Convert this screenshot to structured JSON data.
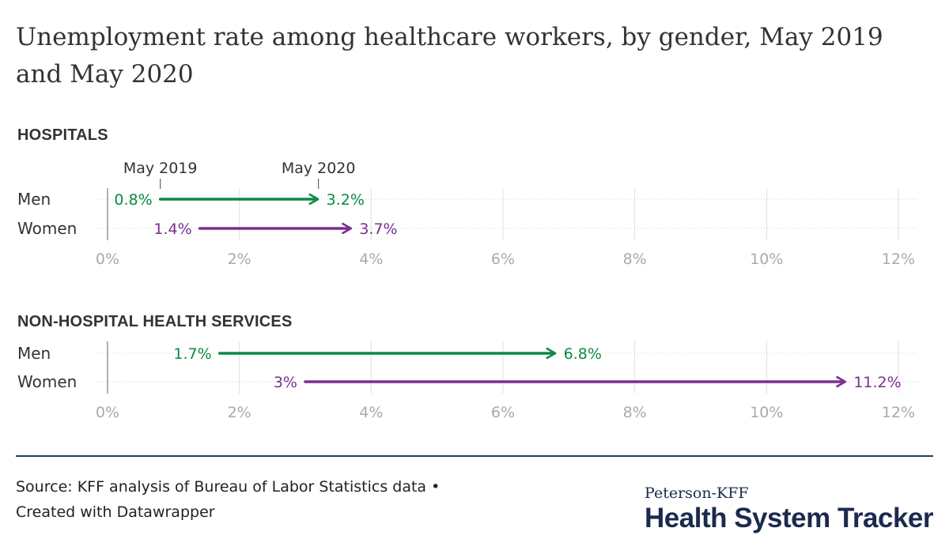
{
  "title": "Unemployment rate among healthcare workers, by gender, May 2019 and May 2020",
  "legend": {
    "start": "May 2019",
    "end": "May 2020"
  },
  "colors": {
    "men": "#0a8a43",
    "women": "#7b2f8e",
    "grid": "#e0e0e0",
    "axis_text": "#aaaaaa"
  },
  "chart_data": [
    {
      "type": "arrow",
      "title": "HOSPITALS",
      "xlim": [
        0,
        12
      ],
      "ticks": [
        "0%",
        "2%",
        "4%",
        "6%",
        "8%",
        "10%",
        "12%"
      ],
      "rows": [
        {
          "label": "Men",
          "start": 0.8,
          "end": 3.2,
          "start_label": "0.8%",
          "end_label": "3.2%",
          "color": "#0a8a43"
        },
        {
          "label": "Women",
          "start": 1.4,
          "end": 3.7,
          "start_label": "1.4%",
          "end_label": "3.7%",
          "color": "#7b2f8e"
        }
      ]
    },
    {
      "type": "arrow",
      "title": "NON-HOSPITAL HEALTH SERVICES",
      "xlim": [
        0,
        12
      ],
      "ticks": [
        "0%",
        "2%",
        "4%",
        "6%",
        "8%",
        "10%",
        "12%"
      ],
      "rows": [
        {
          "label": "Men",
          "start": 1.7,
          "end": 6.8,
          "start_label": "1.7%",
          "end_label": "6.8%",
          "color": "#0a8a43"
        },
        {
          "label": "Women",
          "start": 3.0,
          "end": 11.2,
          "start_label": "3%",
          "end_label": "11.2%",
          "color": "#7b2f8e"
        }
      ]
    }
  ],
  "footer": {
    "source": "Source: KFF analysis of Bureau of Labor Statistics data •",
    "credit": "Created with Datawrapper",
    "logo_top": "Peterson-KFF",
    "logo_main": "Health System Tracker"
  }
}
